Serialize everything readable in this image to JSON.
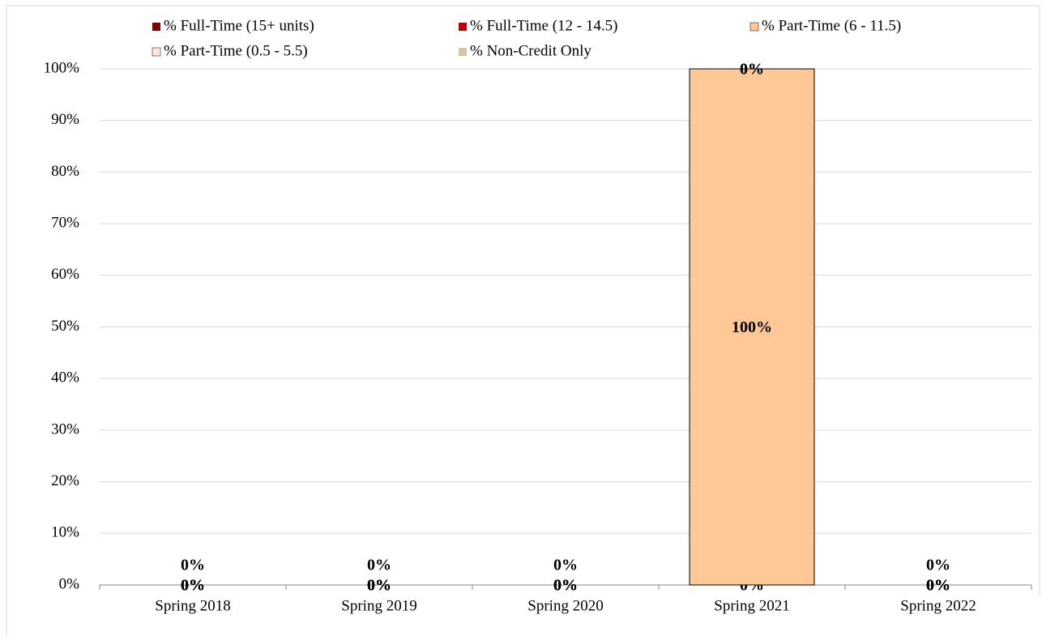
{
  "chart_data": {
    "type": "stacked_bar",
    "categories": [
      "Spring 2018",
      "Spring 2019",
      "Spring 2020",
      "Spring 2021",
      "Spring 2022"
    ],
    "series": [
      {
        "name": "% Full-Time (15+ units)",
        "color": "#7f0000",
        "values": [
          0,
          0,
          0,
          0,
          0
        ],
        "value_labels": [
          "0%",
          "0%",
          "0%",
          "0%",
          "0%"
        ]
      },
      {
        "name": "% Full-Time (12 - 14.5)",
        "color": "#c00000",
        "values": [
          0,
          0,
          0,
          0,
          0
        ],
        "value_labels": [
          "0%",
          "0%",
          "0%",
          "0%",
          "0%"
        ]
      },
      {
        "name": "% Part-Time (6 - 11.5)",
        "color": "#ffc896",
        "values": [
          0,
          0,
          0,
          100,
          0
        ],
        "value_labels": [
          "0%",
          "0%",
          "0%",
          "100%",
          "0%"
        ]
      },
      {
        "name": "% Part-Time (0.5 - 5.5)",
        "color": "#fde9d9",
        "values": [
          0,
          0,
          0,
          0,
          0
        ],
        "value_labels": [
          "0%",
          "0%",
          "0%",
          "0%",
          "0%"
        ]
      },
      {
        "name": "% Non-Credit Only",
        "color": "#d9c3a5",
        "values": [
          0,
          0,
          0,
          0,
          0
        ],
        "value_labels": [
          "0%",
          "0%",
          "0%",
          "0%",
          "0%"
        ]
      }
    ],
    "ylim": [
      0,
      100
    ],
    "yticks": [
      {
        "value": 0,
        "label": "0%"
      },
      {
        "value": 10,
        "label": "10%"
      },
      {
        "value": 20,
        "label": "20%"
      },
      {
        "value": 30,
        "label": "30%"
      },
      {
        "value": 40,
        "label": "40%"
      },
      {
        "value": 50,
        "label": "50%"
      },
      {
        "value": 60,
        "label": "60%"
      },
      {
        "value": 70,
        "label": "70%"
      },
      {
        "value": 80,
        "label": "80%"
      },
      {
        "value": 90,
        "label": "90%"
      },
      {
        "value": 100,
        "label": "100%"
      }
    ],
    "grid": true,
    "legend": "top"
  }
}
